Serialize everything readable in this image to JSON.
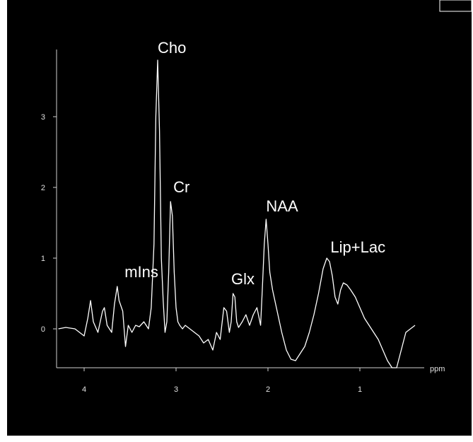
{
  "chart_data": {
    "type": "line",
    "title": "",
    "xlabel": "ppm",
    "ylabel": "",
    "x_reversed": true,
    "xlim": [
      4.3,
      0.3
    ],
    "ylim": [
      -0.55,
      3.95
    ],
    "x_ticks": [
      4,
      3,
      2,
      1
    ],
    "y_ticks": [
      0,
      1,
      2,
      3
    ],
    "grid": false,
    "colors": {
      "background": "#000000",
      "line": "#ffffff",
      "text": "#ffffff",
      "axis": "#d0d0d0"
    },
    "annotations": [
      {
        "text": "Cho",
        "x": 3.2,
        "y": 3.82
      },
      {
        "text": "Cr",
        "x": 3.03,
        "y": 1.85
      },
      {
        "text": "mIns",
        "x": 3.56,
        "y": 0.65
      },
      {
        "text": "Glx",
        "x": 2.4,
        "y": 0.55
      },
      {
        "text": "NAA",
        "x": 2.02,
        "y": 1.58
      },
      {
        "text": "Lip+Lac",
        "x": 1.32,
        "y": 1.0
      }
    ],
    "x": [
      4.28,
      4.2,
      4.1,
      4.0,
      3.96,
      3.93,
      3.9,
      3.85,
      3.8,
      3.78,
      3.75,
      3.7,
      3.67,
      3.64,
      3.62,
      3.58,
      3.55,
      3.52,
      3.48,
      3.44,
      3.4,
      3.35,
      3.3,
      3.27,
      3.24,
      3.22,
      3.2,
      3.18,
      3.16,
      3.14,
      3.12,
      3.1,
      3.08,
      3.06,
      3.04,
      3.02,
      3.0,
      2.98,
      2.96,
      2.93,
      2.9,
      2.85,
      2.8,
      2.75,
      2.7,
      2.65,
      2.6,
      2.56,
      2.52,
      2.48,
      2.45,
      2.42,
      2.4,
      2.38,
      2.36,
      2.34,
      2.32,
      2.28,
      2.24,
      2.2,
      2.16,
      2.12,
      2.08,
      2.06,
      2.04,
      2.02,
      2.0,
      1.98,
      1.95,
      1.9,
      1.85,
      1.8,
      1.75,
      1.7,
      1.65,
      1.6,
      1.55,
      1.5,
      1.45,
      1.4,
      1.36,
      1.33,
      1.3,
      1.27,
      1.24,
      1.21,
      1.18,
      1.14,
      1.1,
      1.05,
      1.0,
      0.95,
      0.9,
      0.85,
      0.8,
      0.75,
      0.7,
      0.65,
      0.6,
      0.55,
      0.5,
      0.45,
      0.4
    ],
    "y": [
      0.0,
      0.02,
      0.0,
      -0.1,
      0.15,
      0.4,
      0.1,
      -0.05,
      0.25,
      0.3,
      0.05,
      -0.05,
      0.35,
      0.6,
      0.4,
      0.25,
      -0.25,
      0.05,
      -0.05,
      0.05,
      0.03,
      0.1,
      0.0,
      0.3,
      1.2,
      3.0,
      3.8,
      2.8,
      1.0,
      0.4,
      -0.05,
      0.1,
      0.8,
      1.8,
      1.6,
      0.8,
      0.3,
      0.1,
      0.05,
      0.0,
      0.05,
      0.0,
      -0.05,
      -0.1,
      -0.2,
      -0.15,
      -0.3,
      -0.05,
      -0.15,
      0.3,
      0.25,
      -0.05,
      0.1,
      0.5,
      0.45,
      0.1,
      0.02,
      0.1,
      0.2,
      0.05,
      0.2,
      0.3,
      0.05,
      0.6,
      1.2,
      1.55,
      1.2,
      0.8,
      0.55,
      0.25,
      -0.05,
      -0.3,
      -0.43,
      -0.45,
      -0.35,
      -0.25,
      -0.05,
      0.2,
      0.5,
      0.85,
      1.0,
      0.95,
      0.75,
      0.45,
      0.35,
      0.55,
      0.65,
      0.62,
      0.55,
      0.45,
      0.3,
      0.15,
      0.05,
      -0.05,
      -0.15,
      -0.3,
      -0.45,
      -0.55,
      -0.55,
      -0.3,
      -0.05,
      0.0,
      0.05
    ]
  }
}
